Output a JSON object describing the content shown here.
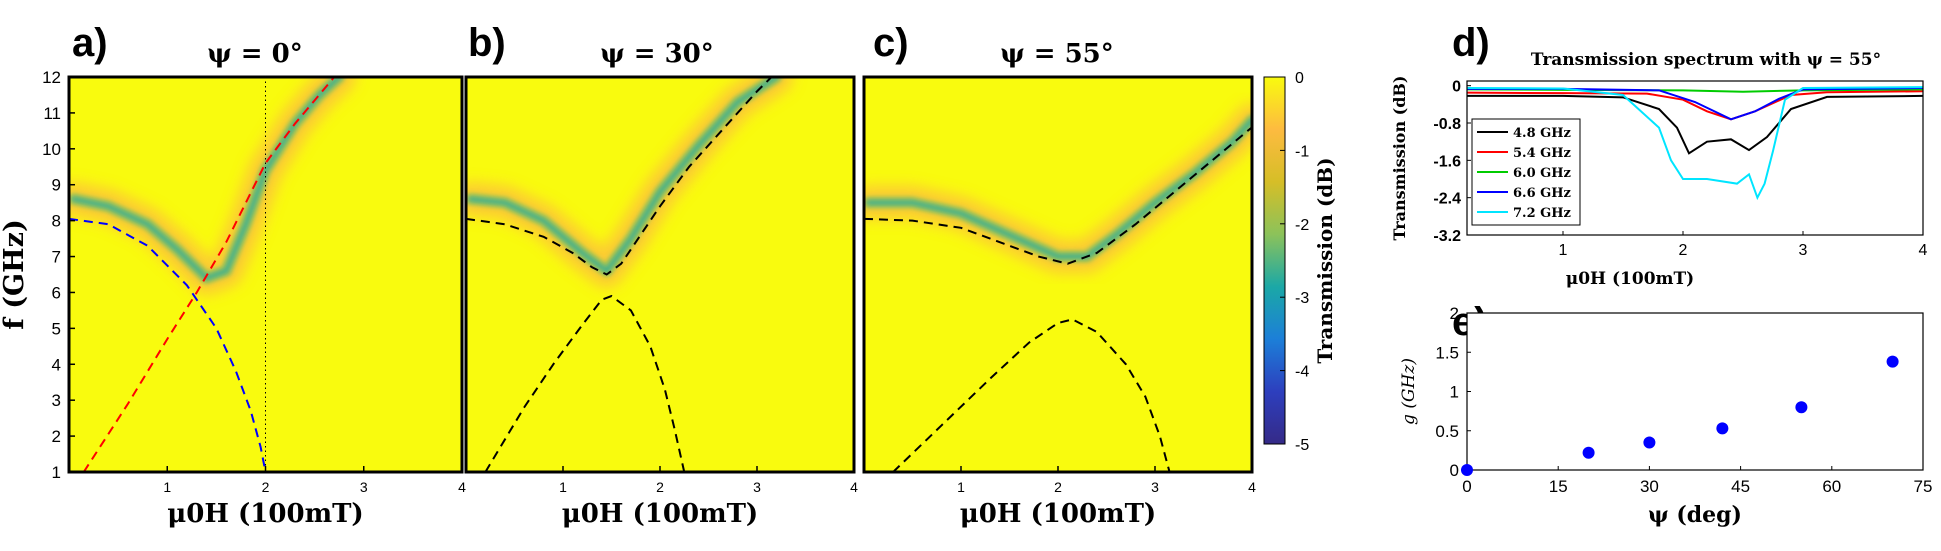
{
  "panels": {
    "a": {
      "label": "a)",
      "title": "ψ = 0°"
    },
    "b": {
      "label": "b)",
      "title": "ψ = 30°"
    },
    "c": {
      "label": "c)",
      "title": "ψ = 55°"
    },
    "d": {
      "label": "d)",
      "title": "Transmission spectrum with ψ = 55°"
    },
    "e": {
      "label": "e)"
    }
  },
  "colorbar": {
    "label": "Transmission (dB)",
    "ticks": [
      "0",
      "-1",
      "-2",
      "-3",
      "-4",
      "-5"
    ]
  },
  "colors": {
    "colormap": [
      "#f9fb0e",
      "#fdbb40",
      "#d6be27",
      "#8cc25a",
      "#1ba8a6",
      "#1c7fd8",
      "#2d3fbe",
      "#352a87"
    ],
    "red_dash": "#ff0000",
    "blue_dash": "#0000ff"
  },
  "chart_data": [
    {
      "type": "heatmap",
      "id": "a",
      "title": "ψ = 0°",
      "xlabel": "μ0H (100mT)",
      "ylabel": "f (GHz)",
      "xlim": [
        0,
        4
      ],
      "ylim": [
        1,
        12
      ],
      "xticks": [
        "1",
        "2",
        "3",
        "4"
      ],
      "yticks": [
        "1",
        "2",
        "3",
        "4",
        "5",
        "6",
        "7",
        "8",
        "9",
        "10",
        "11",
        "12"
      ],
      "colorbar_range": [
        -5,
        0
      ],
      "vertical_dotted_line_x": 2.0,
      "ridge": [
        [
          0.05,
          8.6
        ],
        [
          0.4,
          8.4
        ],
        [
          0.8,
          7.9
        ],
        [
          1.1,
          7.2
        ],
        [
          1.4,
          6.4
        ],
        [
          1.6,
          6.6
        ],
        [
          1.8,
          7.9
        ],
        [
          2.0,
          9.4
        ],
        [
          2.3,
          10.7
        ],
        [
          2.55,
          11.5
        ],
        [
          2.75,
          12.0
        ]
      ],
      "curves": [
        {
          "style": "red-dashed",
          "points": [
            [
              0.15,
              1.0
            ],
            [
              0.6,
              2.9
            ],
            [
              1.0,
              4.7
            ],
            [
              1.3,
              6.0
            ],
            [
              1.6,
              7.4
            ],
            [
              1.8,
              8.5
            ],
            [
              2.0,
              9.6
            ],
            [
              2.3,
              10.7
            ],
            [
              2.7,
              12.0
            ]
          ]
        },
        {
          "style": "blue-dashed",
          "points": [
            [
              0.0,
              8.05
            ],
            [
              0.4,
              7.9
            ],
            [
              0.8,
              7.3
            ],
            [
              1.2,
              6.2
            ],
            [
              1.5,
              5.0
            ],
            [
              1.7,
              3.8
            ],
            [
              1.85,
              2.7
            ],
            [
              1.95,
              1.7
            ],
            [
              2.0,
              1.0
            ]
          ]
        }
      ]
    },
    {
      "type": "heatmap",
      "id": "b",
      "title": "ψ = 30°",
      "xlabel": "μ0H (100mT)",
      "xlim": [
        0,
        4
      ],
      "ylim": [
        1,
        12
      ],
      "xticks": [
        "1",
        "2",
        "3",
        "4"
      ],
      "ridge": [
        [
          0.05,
          8.6
        ],
        [
          0.4,
          8.5
        ],
        [
          0.8,
          8.0
        ],
        [
          1.2,
          7.1
        ],
        [
          1.45,
          6.6
        ],
        [
          1.7,
          7.5
        ],
        [
          2.0,
          8.8
        ],
        [
          2.4,
          10.1
        ],
        [
          2.8,
          11.3
        ],
        [
          3.2,
          12.0
        ]
      ],
      "curves": [
        {
          "style": "black-dashed",
          "points": [
            [
              0.0,
              8.05
            ],
            [
              0.4,
              7.9
            ],
            [
              0.8,
              7.55
            ],
            [
              1.1,
              7.1
            ],
            [
              1.3,
              6.7
            ],
            [
              1.45,
              6.5
            ],
            [
              1.6,
              6.8
            ],
            [
              1.8,
              7.6
            ],
            [
              2.0,
              8.4
            ],
            [
              2.3,
              9.5
            ],
            [
              2.6,
              10.4
            ],
            [
              3.0,
              11.6
            ],
            [
              3.15,
              12.0
            ]
          ]
        },
        {
          "style": "black-dashed",
          "points": [
            [
              0.2,
              1.0
            ],
            [
              0.6,
              2.8
            ],
            [
              0.9,
              4.0
            ],
            [
              1.2,
              5.1
            ],
            [
              1.4,
              5.8
            ],
            [
              1.5,
              5.9
            ],
            [
              1.7,
              5.5
            ],
            [
              1.9,
              4.5
            ],
            [
              2.05,
              3.3
            ],
            [
              2.15,
              2.2
            ],
            [
              2.25,
              1.0
            ]
          ]
        }
      ]
    },
    {
      "type": "heatmap",
      "id": "c",
      "title": "ψ = 55°",
      "xlabel": "μ0H (100mT)",
      "xlim": [
        0,
        4
      ],
      "ylim": [
        1,
        12
      ],
      "xticks": [
        "1",
        "2",
        "3",
        "4"
      ],
      "ridge": [
        [
          0.05,
          8.5
        ],
        [
          0.5,
          8.5
        ],
        [
          1.0,
          8.2
        ],
        [
          1.5,
          7.6
        ],
        [
          2.0,
          7.0
        ],
        [
          2.3,
          7.0
        ],
        [
          2.6,
          7.6
        ],
        [
          3.0,
          8.5
        ],
        [
          3.4,
          9.3
        ],
        [
          3.8,
          10.2
        ],
        [
          4.0,
          10.8
        ]
      ],
      "curves": [
        {
          "style": "black-dashed",
          "points": [
            [
              0.0,
              8.05
            ],
            [
              0.5,
              8.0
            ],
            [
              1.0,
              7.8
            ],
            [
              1.4,
              7.4
            ],
            [
              1.8,
              7.0
            ],
            [
              2.1,
              6.8
            ],
            [
              2.4,
              7.1
            ],
            [
              2.8,
              7.9
            ],
            [
              3.2,
              8.8
            ],
            [
              3.6,
              9.7
            ],
            [
              4.0,
              10.6
            ]
          ]
        },
        {
          "style": "black-dashed",
          "points": [
            [
              0.3,
              1.0
            ],
            [
              0.8,
              2.3
            ],
            [
              1.3,
              3.6
            ],
            [
              1.7,
              4.6
            ],
            [
              2.0,
              5.15
            ],
            [
              2.15,
              5.25
            ],
            [
              2.4,
              4.9
            ],
            [
              2.7,
              4.0
            ],
            [
              2.9,
              3.1
            ],
            [
              3.05,
              2.0
            ],
            [
              3.15,
              1.0
            ]
          ]
        }
      ]
    },
    {
      "type": "line",
      "id": "d",
      "title": "Transmission spectrum with ψ = 55°",
      "xlabel": "μ0H (100mT)",
      "ylabel": "Transmission (dB)",
      "xlim": [
        0.2,
        4
      ],
      "ylim": [
        -3.2,
        0.1
      ],
      "xticks": [
        "1",
        "2",
        "3",
        "4"
      ],
      "yticks": [
        "0",
        "-0.8",
        "-1.6",
        "-2.4",
        "-3.2"
      ],
      "legend_position": "left",
      "series": [
        {
          "name": "4.8 GHz",
          "color": "#000000",
          "x": [
            0.2,
            1.0,
            1.5,
            1.8,
            1.95,
            2.05,
            2.2,
            2.4,
            2.55,
            2.7,
            2.9,
            3.2,
            4.0
          ],
          "y": [
            -0.22,
            -0.22,
            -0.25,
            -0.5,
            -0.9,
            -1.45,
            -1.2,
            -1.15,
            -1.38,
            -1.1,
            -0.5,
            -0.24,
            -0.22
          ]
        },
        {
          "name": "5.4 GHz",
          "color": "#ff0000",
          "x": [
            0.2,
            1.0,
            1.7,
            2.0,
            2.2,
            2.4,
            2.6,
            2.9,
            3.2,
            4.0
          ],
          "y": [
            -0.15,
            -0.16,
            -0.17,
            -0.3,
            -0.55,
            -0.72,
            -0.55,
            -0.2,
            -0.14,
            -0.12
          ]
        },
        {
          "name": "6.0 GHz",
          "color": "#00cc00",
          "x": [
            0.2,
            1.0,
            2.0,
            2.5,
            3.0,
            4.0
          ],
          "y": [
            -0.08,
            -0.09,
            -0.1,
            -0.13,
            -0.1,
            -0.08
          ]
        },
        {
          "name": "6.6 GHz",
          "color": "#0000ff",
          "x": [
            0.2,
            1.0,
            1.8,
            2.1,
            2.4,
            2.6,
            2.8,
            3.0,
            4.0
          ],
          "y": [
            -0.07,
            -0.07,
            -0.1,
            -0.35,
            -0.72,
            -0.55,
            -0.28,
            -0.08,
            -0.05
          ]
        },
        {
          "name": "7.2 GHz",
          "color": "#00e5ff",
          "x": [
            0.2,
            1.0,
            1.5,
            1.8,
            1.9,
            2.0,
            2.2,
            2.45,
            2.55,
            2.62,
            2.68,
            2.75,
            2.85,
            3.0,
            4.0
          ],
          "y": [
            -0.05,
            -0.06,
            -0.2,
            -0.9,
            -1.6,
            -2.0,
            -2.0,
            -2.1,
            -1.9,
            -2.4,
            -2.1,
            -1.4,
            -0.3,
            -0.05,
            -0.03
          ]
        }
      ]
    },
    {
      "type": "scatter",
      "id": "e",
      "xlabel": "ψ (deg)",
      "ylabel": "g (GHz)",
      "xlim": [
        0,
        75
      ],
      "ylim": [
        0,
        2
      ],
      "xticks": [
        "0",
        "15",
        "30",
        "45",
        "60",
        "75"
      ],
      "yticks": [
        "0",
        "0.5",
        "1",
        "1.5",
        "2"
      ],
      "color": "#0000ff",
      "points": [
        [
          0,
          0.0
        ],
        [
          20,
          0.22
        ],
        [
          30,
          0.35
        ],
        [
          42,
          0.53
        ],
        [
          55,
          0.8
        ],
        [
          70,
          1.38
        ]
      ]
    }
  ]
}
